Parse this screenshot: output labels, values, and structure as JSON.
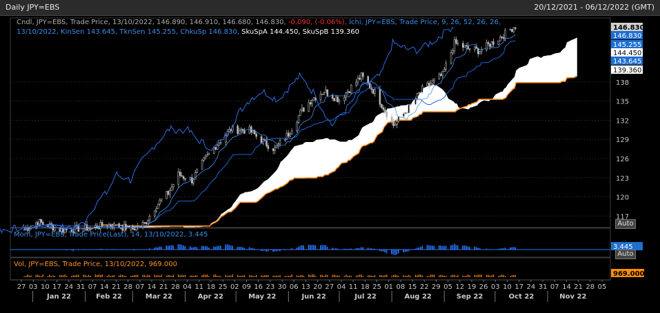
{
  "window": {
    "title": "Daily JPY=EBS",
    "date_range": "20/12/2021 - 06/12/2022 (GMT)"
  },
  "legend": {
    "candle_prefix": "Cndl, JPY=EBS, Trade Price, 13/10/2022, 146.890, 146.910, 146.680, 146.830,",
    "candle_change": "-0.090, (-0.06%),",
    "ichi_line1": "Ichi, JPY=EBS, Trade Price,  9, 26, 52, 26, 26,",
    "ichi_line2_blue": "13/10/2022, KinSen 143.645, TknSen 145.255, ChkuSp 146.830,",
    "ichi_line2_white": "SkuSpA 144.450, SkuSpB 139.360",
    "mom": "Mom, JPY=EBS, Trade Price(Last),  14,  13/10/2022, 3.445",
    "vol": "Vol, JPY=EBS, Trade Price, 13/10/2022, 969.000"
  },
  "price_axis": {
    "ticks": [
      "138",
      "135",
      "132",
      "129",
      "126",
      "123",
      "120",
      "117"
    ],
    "badges": [
      {
        "value": "146.830",
        "bg": "#d0d0d0",
        "fg": "#000000"
      },
      {
        "value": "146.830",
        "bg": "#1e6fd0",
        "fg": "#ffffff"
      },
      {
        "value": "145.255",
        "bg": "#1e6fd0",
        "fg": "#ffffff"
      },
      {
        "value": "144.450",
        "bg": "#ffffff",
        "fg": "#000000"
      },
      {
        "value": "143.645",
        "bg": "#1e6fd0",
        "fg": "#ffffff"
      },
      {
        "value": "139.360",
        "bg": "#ffffff",
        "fg": "#000000"
      }
    ],
    "auto_label": "Auto"
  },
  "mom_axis": {
    "badge": "3.445",
    "auto_label": "Auto"
  },
  "vol_axis": {
    "badge": "969.000"
  },
  "x_axis": {
    "day_ticks": [
      "27",
      "03",
      "10",
      "17",
      "24",
      "31",
      "07",
      "14",
      "21",
      "28",
      "07",
      "14",
      "21",
      "28",
      "04",
      "11",
      "18",
      "25",
      "02",
      "09",
      "16",
      "23",
      "30",
      "06",
      "13",
      "20",
      "27",
      "04",
      "11",
      "18",
      "25",
      "01",
      "08",
      "15",
      "22",
      "29",
      "05",
      "12",
      "19",
      "26",
      "03",
      "10",
      "17",
      "24",
      "31",
      "07",
      "14",
      "21",
      "28",
      "05"
    ],
    "months": [
      "Jan 22",
      "Feb 22",
      "Mar 22",
      "Apr 22",
      "May 22",
      "Jun 22",
      "Jul 22",
      "Aug 22",
      "Sep 22",
      "Oct 22",
      "Nov 22"
    ]
  },
  "colors": {
    "background": "#000000",
    "grid": "#3a3a3a",
    "candles": "#b4b4b4",
    "kijun": "#1e64d2",
    "chikou": "#2d6ee6",
    "cloud": "#ffffff",
    "span_b": "#ff8c1e",
    "momentum": "#2878ff",
    "volume": "#e07a10"
  },
  "chart_data": {
    "type": "candlestick",
    "instrument": "JPY=EBS",
    "interval": "Daily",
    "date_range": [
      "2021-12-20",
      "2022-12-06"
    ],
    "ylim": [
      115.2,
      147.6
    ],
    "last_bar": {
      "date": "2022-10-13",
      "open": 146.89,
      "high": 146.91,
      "low": 146.68,
      "close": 146.83,
      "change": -0.09,
      "change_pct": -0.06
    },
    "close_path": {
      "x": [
        "2021-12-27",
        "2022-01-04",
        "2022-01-18",
        "2022-02-01",
        "2022-02-15",
        "2022-03-01",
        "2022-03-08",
        "2022-03-15",
        "2022-03-22",
        "2022-03-28",
        "2022-04-05",
        "2022-04-12",
        "2022-04-19",
        "2022-04-28",
        "2022-05-09",
        "2022-05-17",
        "2022-05-24",
        "2022-06-01",
        "2022-06-08",
        "2022-06-15",
        "2022-06-22",
        "2022-07-01",
        "2022-07-14",
        "2022-07-22",
        "2022-08-02",
        "2022-08-10",
        "2022-08-19",
        "2022-08-31",
        "2022-09-07",
        "2022-09-15",
        "2022-09-22",
        "2022-10-03",
        "2022-10-13"
      ],
      "y": [
        114.9,
        116.1,
        114.8,
        115.1,
        115.6,
        115.0,
        115.8,
        118.7,
        120.6,
        123.5,
        122.6,
        125.6,
        128.0,
        130.6,
        130.4,
        128.6,
        127.5,
        129.9,
        133.2,
        135.4,
        136.6,
        135.2,
        138.9,
        136.4,
        131.2,
        133.6,
        136.8,
        139.1,
        144.1,
        143.2,
        142.9,
        144.8,
        146.83
      ]
    },
    "ichimoku": {
      "params": [
        9,
        26,
        52,
        26,
        26
      ],
      "kijun_sen": 143.645,
      "tenkan_sen": 145.255,
      "chikou_span": 146.83,
      "senkou_span_a": 144.45,
      "senkou_span_b": 139.36
    },
    "momentum": {
      "period": 14,
      "last": 3.445
    },
    "volume": {
      "last": 969.0
    }
  }
}
